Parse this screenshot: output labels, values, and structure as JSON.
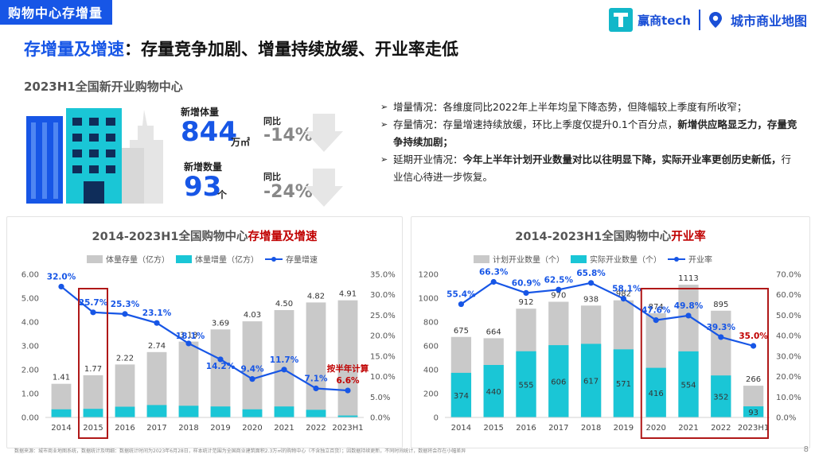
{
  "page": {
    "tag": "购物中心存增量",
    "headline_highlight": "存增量及增速",
    "headline_rest": "：存量竞争加剧、增量持续放缓、开业率走低",
    "subhead": "2023H1全国新开业购物中心",
    "page_number": "8",
    "footnote": "数据来源：城市商业地图系统，数据统计及明细：数据统计时间为2023年6月28日，样本统计范围为全国商业建筑面积2.3万㎡的购物中心（不含独立百货）；因数据持续更新，不同时间统计，数据将会存在小幅差异"
  },
  "logo": {
    "brand1": "赢商tech",
    "brand2": "城市商业地图"
  },
  "stats": {
    "area_label": "新增体量",
    "area_value": "844",
    "area_unit": "万㎡",
    "area_yoy_label": "同比",
    "area_yoy": "-14%",
    "count_label": "新增数量",
    "count_value": "93",
    "count_unit": "个",
    "count_yoy_label": "同比",
    "count_yoy": "-24%"
  },
  "bullets": [
    {
      "normal": "增量情况：各维度同比2022年上半年均呈下降态势，但降幅较上季度有所收窄；",
      "bold": ""
    },
    {
      "normal": "存量情况：存量增速持续放缓，环比上季度仅提升0.1个百分点，",
      "bold": "新增供应略显乏力，存量竞争持续加剧；"
    },
    {
      "normal": "延期开业情况：",
      "bold": "今年上半年计划开业数量对比以往明显下降，实际开业率更创历史新低，",
      "tail": "行业信心待进一步恢复。"
    }
  ],
  "chart_data": [
    {
      "type": "bar",
      "title_prefix": "2014-2023H1全国购物中心",
      "title_highlight": "存增量及增速",
      "categories": [
        "2014",
        "2015",
        "2016",
        "2017",
        "2018",
        "2019",
        "2020",
        "2021",
        "2022",
        "2023H1"
      ],
      "series": [
        {
          "name": "体量存量（亿方）",
          "kind": "bar",
          "values": [
            1.41,
            1.77,
            2.22,
            2.74,
            3.18,
            3.69,
            4.03,
            4.5,
            4.82,
            4.91
          ],
          "labels": [
            "1.41",
            "1.77",
            "2.22",
            "2.74",
            "3.18",
            "3.69",
            "4.03",
            "4.50",
            "4.82",
            "4.91"
          ],
          "color": "#c9c9c9"
        },
        {
          "name": "体量增量（亿方）",
          "kind": "bar",
          "values": [
            0.34,
            0.36,
            0.45,
            0.52,
            0.49,
            0.46,
            0.34,
            0.46,
            0.32,
            0.08
          ],
          "color": "#1ac6d6"
        },
        {
          "name": "存量增速",
          "kind": "line",
          "axis": "right",
          "values": [
            32.0,
            25.7,
            25.3,
            23.1,
            18.1,
            14.2,
            9.4,
            11.7,
            7.1,
            6.6
          ],
          "labels": [
            "32.0%",
            "25.7%",
            "25.3%",
            "23.1%",
            "18.1%",
            "14.2%",
            "9.4%",
            "11.7%",
            "7.1%",
            "6.6%"
          ],
          "color": "#1756e6"
        }
      ],
      "ylim": [
        0,
        6
      ],
      "yticks": [
        "0.00",
        "1.00",
        "2.00",
        "3.00",
        "4.00",
        "5.00",
        "6.00"
      ],
      "y2lim": [
        0,
        35
      ],
      "y2ticks": [
        "0.0%",
        "5.0%",
        "10.0%",
        "15.0%",
        "20.0%",
        "25.0%",
        "30.0%",
        "35.0%"
      ],
      "annotation": "按半年计算",
      "highlight_box": "2015"
    },
    {
      "type": "bar",
      "title_prefix": "2014-2023H1全国购物中心",
      "title_highlight": "开业率",
      "categories": [
        "2014",
        "2015",
        "2016",
        "2017",
        "2018",
        "2019",
        "2020",
        "2021",
        "2022",
        "2023H1"
      ],
      "series": [
        {
          "name": "计划开业数量（个）",
          "kind": "bar",
          "values": [
            675,
            664,
            912,
            970,
            938,
            982,
            874,
            1113,
            895,
            266
          ],
          "labels": [
            "675",
            "664",
            "912",
            "970",
            "938",
            "982",
            "874",
            "1113",
            "895",
            "266"
          ],
          "color": "#c9c9c9"
        },
        {
          "name": "实际开业数量（个）",
          "kind": "bar",
          "values": [
            374,
            440,
            555,
            606,
            617,
            571,
            416,
            554,
            352,
            93
          ],
          "labels": [
            "374",
            "440",
            "555",
            "606",
            "617",
            "571",
            "416",
            "554",
            "352",
            "93"
          ],
          "color": "#1ac6d6"
        },
        {
          "name": "开业率",
          "kind": "line",
          "axis": "right",
          "values": [
            55.4,
            66.3,
            60.9,
            62.5,
            65.8,
            58.1,
            47.6,
            49.8,
            39.3,
            35.0
          ],
          "labels": [
            "55.4%",
            "66.3%",
            "60.9%",
            "62.5%",
            "65.8%",
            "58.1%",
            "47.6%",
            "49.8%",
            "39.3%",
            "35.0%"
          ],
          "color": "#1756e6"
        }
      ],
      "ylim": [
        0,
        1200
      ],
      "yticks": [
        "0",
        "200",
        "400",
        "600",
        "800",
        "1000",
        "1200"
      ],
      "y2lim": [
        0,
        70
      ],
      "y2ticks": [
        "0.0%",
        "10.0%",
        "20.0%",
        "30.0%",
        "40.0%",
        "50.0%",
        "60.0%",
        "70.0%"
      ],
      "highlight_box": "2020-2023H1"
    }
  ]
}
